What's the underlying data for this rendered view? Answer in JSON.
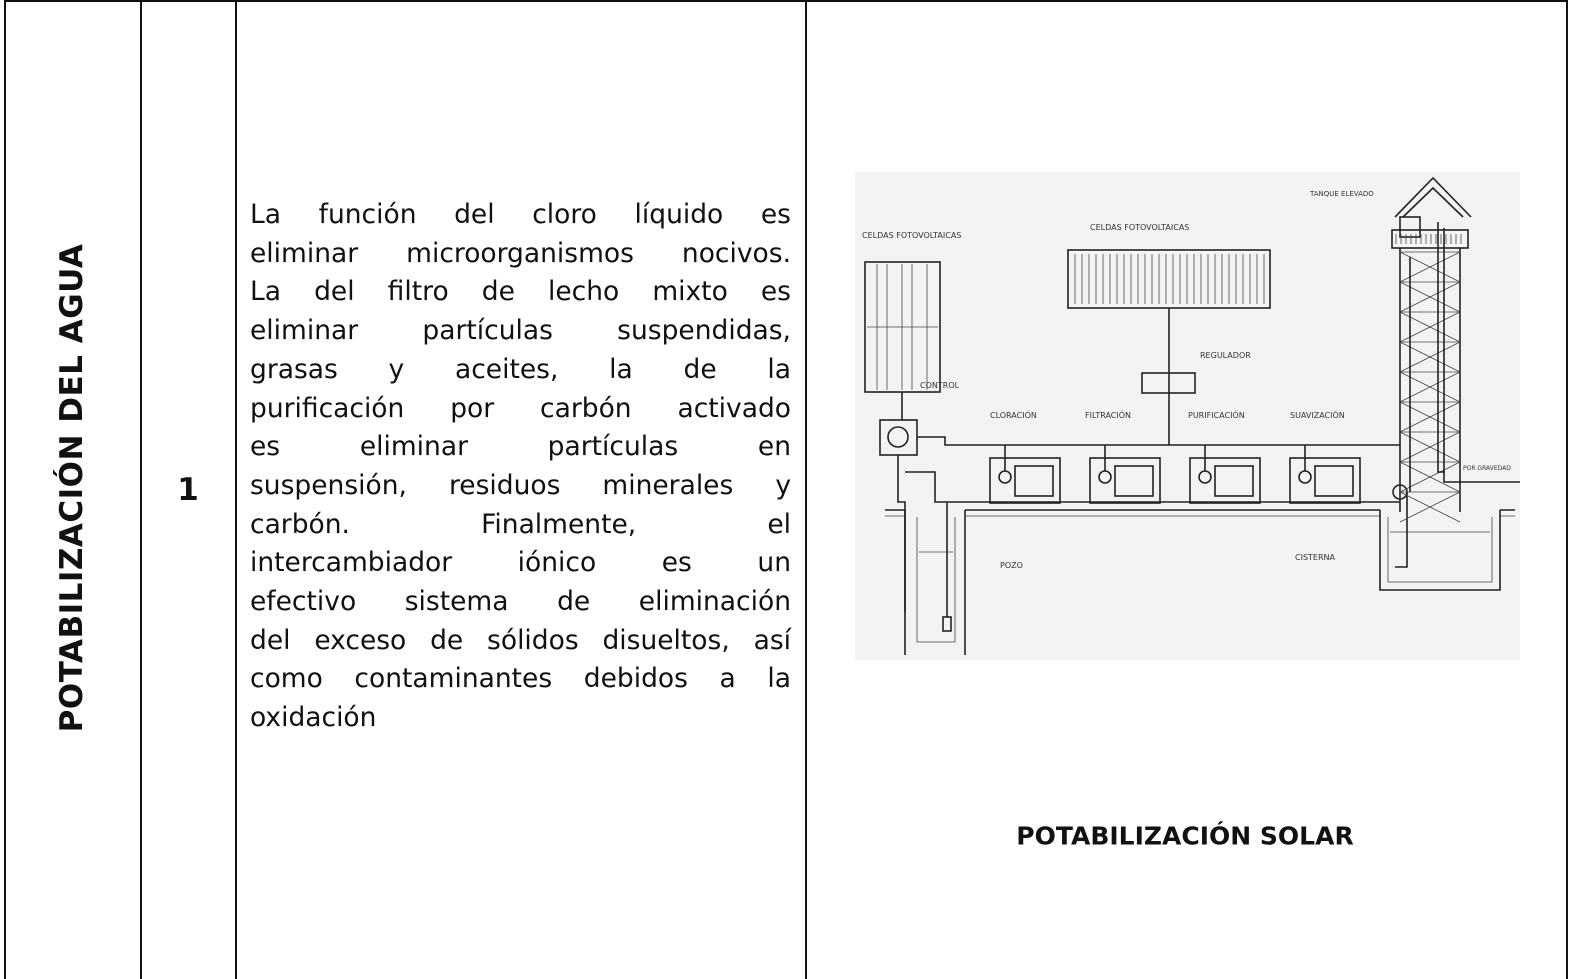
{
  "table": {
    "section_title": "POTABILIZACIÓN DEL AGUA",
    "number": "1",
    "description_lines": [
      "La función del cloro líquido es",
      "eliminar microorganismos nocivos.",
      "La del filtro de lecho mixto es",
      "eliminar partículas suspendidas,",
      "grasas y aceites, la de la",
      "purificación por carbón activado",
      "es eliminar partículas en",
      "suspensión, residuos minerales y",
      "carbón. Finalmente, el",
      "intercambiador iónico es un",
      "efectivo sistema de eliminación",
      "del exceso de sólidos disueltos, así",
      "como contaminantes debidos a la",
      "oxidación"
    ],
    "image_caption": "POTABILIZACIÓN SOLAR"
  },
  "diagram": {
    "labels": [
      "CELDAS FOTOVOLTAICAS",
      "CELDAS FOTOVOLTAICAS",
      "TANQUE ELEVADO",
      "REGULADOR",
      "CONTROL",
      "CLORACIÓN",
      "FILTRACIÓN",
      "PURIFICACIÓN",
      "SUAVIZACIÓN",
      "POR GRAVEDAD",
      "POZO",
      "CISTERNA"
    ]
  }
}
